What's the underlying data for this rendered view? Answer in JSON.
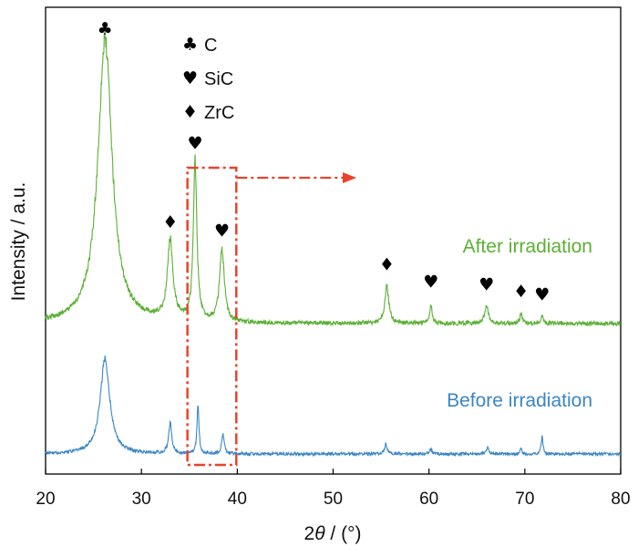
{
  "chart_data": {
    "type": "line",
    "xlabel": "2θ / (°)",
    "ylabel": "Intensity / a.u.",
    "xlim": [
      20,
      80
    ],
    "xticks": [
      "20",
      "30",
      "40",
      "50",
      "60",
      "70",
      "80"
    ],
    "grid": false,
    "legend": [
      {
        "symbol": "♣",
        "label": "C"
      },
      {
        "symbol": "♥",
        "label": "SiC"
      },
      {
        "symbol": "♦",
        "label": "ZrC"
      }
    ],
    "series": [
      {
        "name": "After irradiation",
        "color": "#5cb035",
        "peaks": [
          {
            "x": 26.2,
            "height": 1.0,
            "width": 0.9,
            "phase": "C"
          },
          {
            "x": 33.0,
            "height": 0.28,
            "width": 0.35,
            "phase": "ZrC"
          },
          {
            "x": 35.6,
            "height": 0.56,
            "width": 0.22,
            "phase": "SiC"
          },
          {
            "x": 38.4,
            "height": 0.25,
            "width": 0.3,
            "phase": "SiC"
          },
          {
            "x": 55.6,
            "height": 0.13,
            "width": 0.25,
            "phase": "ZrC"
          },
          {
            "x": 60.2,
            "height": 0.07,
            "width": 0.15,
            "phase": "SiC"
          },
          {
            "x": 66.0,
            "height": 0.06,
            "width": 0.25,
            "phase": "SiC"
          },
          {
            "x": 69.6,
            "height": 0.035,
            "width": 0.15,
            "phase": "ZrC"
          },
          {
            "x": 71.8,
            "height": 0.025,
            "width": 0.15,
            "phase": "SiC"
          }
        ]
      },
      {
        "name": "Before irradiation",
        "color": "#3b86c4",
        "peaks": [
          {
            "x": 26.2,
            "height": 0.38,
            "width": 0.6
          },
          {
            "x": 33.0,
            "height": 0.12,
            "width": 0.2
          },
          {
            "x": 35.9,
            "height": 0.2,
            "width": 0.12
          },
          {
            "x": 38.5,
            "height": 0.08,
            "width": 0.15
          },
          {
            "x": 55.5,
            "height": 0.04,
            "width": 0.15
          },
          {
            "x": 60.2,
            "height": 0.02,
            "width": 0.15
          },
          {
            "x": 66.1,
            "height": 0.025,
            "width": 0.15
          },
          {
            "x": 69.6,
            "height": 0.02,
            "width": 0.12
          },
          {
            "x": 71.8,
            "height": 0.07,
            "width": 0.12
          }
        ]
      }
    ],
    "highlight_box": {
      "x_range": [
        34.8,
        39.9
      ],
      "color": "#e8432a"
    }
  }
}
